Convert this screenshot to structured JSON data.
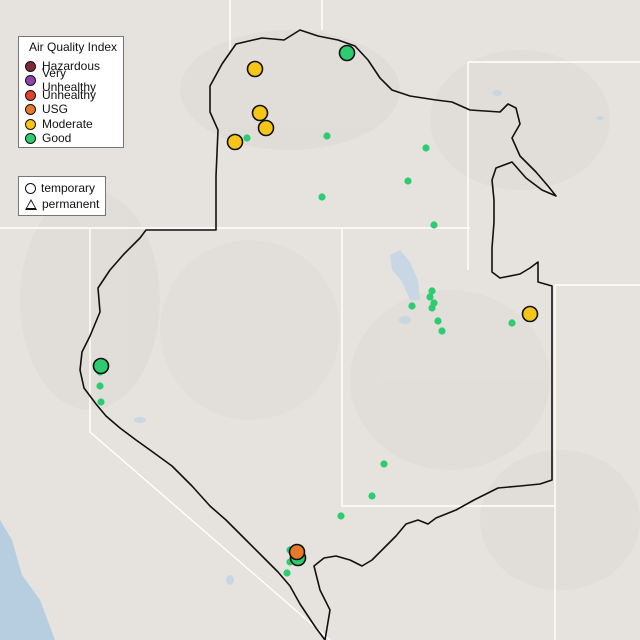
{
  "legend": {
    "title": "Air Quality Index",
    "categories": [
      {
        "label": "Hazardous",
        "color": "#7e2a36"
      },
      {
        "label": "Very Unhealthy",
        "color": "#8e44ad"
      },
      {
        "label": "Unhealthy",
        "color": "#e0412e"
      },
      {
        "label": "USG",
        "color": "#e8782a"
      },
      {
        "label": "Moderate",
        "color": "#f5c518"
      },
      {
        "label": "Good",
        "color": "#2ecc71"
      }
    ]
  },
  "monitor_legend": {
    "temporary_label": "temporary",
    "permanent_label": "permanent"
  },
  "colors": {
    "background": "#e6e3df",
    "water": "#c9d7e4",
    "ocean": "#b7cde0",
    "boundary": "#111111",
    "state_lines": "#ffffff"
  },
  "monitors": {
    "large": [
      {
        "category": "Good",
        "monitor_type": "temporary"
      },
      {
        "category": "Moderate",
        "monitor_type": "temporary"
      },
      {
        "category": "Moderate",
        "monitor_type": "temporary"
      },
      {
        "category": "Moderate",
        "monitor_type": "temporary"
      },
      {
        "category": "Moderate",
        "monitor_type": "temporary"
      },
      {
        "category": "Moderate",
        "monitor_type": "temporary"
      },
      {
        "category": "Good",
        "monitor_type": "temporary"
      },
      {
        "category": "Good",
        "monitor_type": "temporary"
      },
      {
        "category": "USG",
        "monitor_type": "temporary"
      }
    ],
    "small_good_count": 24
  }
}
